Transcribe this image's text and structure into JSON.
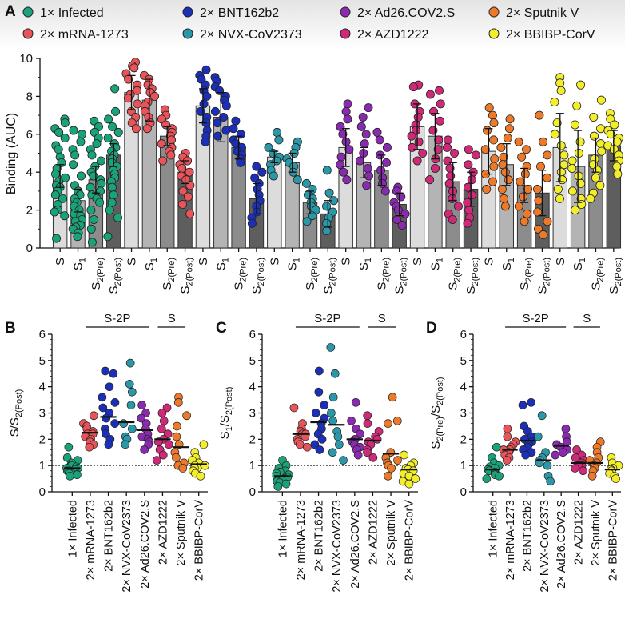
{
  "colors": {
    "Infected": "#1aa37a",
    "mRNA-1273": "#e8545a",
    "BNT162b2": "#1c2fb8",
    "NVX-CoV2373": "#2a98a8",
    "Ad26.COV2.S": "#8a2ab0",
    "AZD1222": "#cf2a78",
    "SputnikV": "#ec7a2a",
    "BBIBP-CorV": "#f2ee2a",
    "bar_S": "#dcdcdc",
    "bar_S1": "#b4b4b4",
    "bar_S2pre": "#8c8c8c",
    "bar_S2post": "#5e5e5e"
  },
  "panel_letters": {
    "A": "A",
    "B": "B",
    "C": "C",
    "D": "D"
  },
  "legend": [
    {
      "label": "1× Infected",
      "color_key": "Infected"
    },
    {
      "label": "2× BNT162b2",
      "color_key": "BNT162b2"
    },
    {
      "label": "2× Ad26.COV2.S",
      "color_key": "Ad26.COV2.S"
    },
    {
      "label": "2× Sputnik V",
      "color_key": "SputnikV"
    },
    {
      "label": "2× mRNA-1273",
      "color_key": "mRNA-1273"
    },
    {
      "label": "2× NVX-CoV2373",
      "color_key": "NVX-CoV2373"
    },
    {
      "label": "2× AZD1222",
      "color_key": "AZD1222"
    },
    {
      "label": "2× BBIBP-CorV",
      "color_key": "BBIBP-CorV"
    }
  ],
  "antigen_labels": {
    "S": "S",
    "S1_base": "S",
    "S1_sub": "1",
    "S2_base": "S",
    "S2pre_sub": "2(Pre)",
    "S2post_sub": "2(Post)"
  },
  "bracket_labels": {
    "s2p": "S-2P",
    "s": "S"
  },
  "group_labels": [
    "1× Infected",
    "2× mRNA-1273",
    "2× BNT162b2",
    "2× NVX-CoV2373",
    "2× Ad26.COV2.S",
    "2× AZD1222",
    "2× Sputnik V",
    "2× BBIBP-CorV"
  ],
  "chart_data": [
    {
      "panel": "A",
      "type": "bar",
      "ylabel": "Binding (AUC)",
      "ylim": [
        0,
        10
      ],
      "yticks": [
        0,
        2,
        4,
        6,
        8,
        10
      ],
      "categories": [
        "S",
        "S1",
        "S2(Pre)",
        "S2(Post)"
      ],
      "series": [
        {
          "name": "1× Infected",
          "color_key": "Infected",
          "values": [
            3.8,
            2.5,
            3.6,
            4.9
          ],
          "err": [
            0.6,
            0.6,
            0.7,
            0.6
          ]
        },
        {
          "name": "2× mRNA-1273",
          "color_key": "mRNA-1273",
          "values": [
            8.2,
            7.8,
            5.9,
            4.0
          ],
          "err": [
            0.9,
            1.1,
            0.5,
            0.6
          ]
        },
        {
          "name": "2× BNT162b2",
          "color_key": "BNT162b2",
          "values": [
            7.5,
            6.9,
            5.3,
            2.6
          ],
          "err": [
            0.9,
            1.3,
            0.6,
            0.8
          ]
        },
        {
          "name": "2× NVX-CoV2373",
          "color_key": "NVX-CoV2373",
          "values": [
            4.8,
            4.5,
            2.4,
            1.8
          ],
          "err": [
            0.3,
            0.5,
            0.6,
            0.7
          ]
        },
        {
          "name": "2× Ad26.COV2.S",
          "color_key": "Ad26.COV2.S",
          "values": [
            5.3,
            4.5,
            4.1,
            2.3
          ],
          "err": [
            1.0,
            0.8,
            0.8,
            0.6
          ]
        },
        {
          "name": "2× AZD1222",
          "color_key": "AZD1222",
          "values": [
            6.4,
            5.9,
            3.5,
            3.1
          ],
          "err": [
            1.2,
            1.2,
            1.0,
            0.9
          ]
        },
        {
          "name": "2× Sputnik V",
          "color_key": "SputnikV",
          "values": [
            5.1,
            4.4,
            3.3,
            2.9
          ],
          "err": [
            1.2,
            1.1,
            0.9,
            1.2
          ]
        },
        {
          "name": "2× BBIBP-CorV",
          "color_key": "BBIBP-CorV",
          "values": [
            5.3,
            4.3,
            4.9,
            5.4
          ],
          "err": [
            1.8,
            1.9,
            0.9,
            0.8
          ]
        }
      ],
      "points": [
        [
          [
            6.8,
            6.6,
            6.3,
            6.1,
            5.8,
            5.4,
            5.2,
            4.8,
            4.5,
            4.2,
            3.9,
            3.7,
            3.5,
            3.3,
            3.2,
            3.0,
            2.8,
            2.6,
            2.3,
            2.0,
            1.9,
            1.7,
            0.5
          ],
          [
            6.2,
            6.0,
            5.6,
            5.2,
            4.9,
            4.4,
            3.8,
            3.3,
            3.0,
            2.8,
            2.6,
            2.4,
            2.2,
            2.0,
            1.8,
            1.7,
            1.5,
            1.4,
            1.2,
            1.1,
            1.0,
            0.8,
            0.6
          ],
          [
            6.7,
            6.4,
            6.1,
            5.8,
            5.5,
            5.2,
            4.9,
            4.6,
            4.3,
            4.0,
            3.8,
            3.6,
            3.4,
            3.2,
            3.0,
            2.8,
            2.6,
            2.4,
            2.0,
            1.5,
            1.0,
            0.3
          ],
          [
            8.4,
            7.2,
            6.8,
            6.4,
            6.1,
            5.8,
            5.5,
            5.3,
            5.1,
            4.9,
            4.7,
            4.5,
            4.3,
            4.1,
            3.9,
            3.7,
            3.5,
            3.2,
            2.8,
            2.4,
            2.0,
            1.6,
            0.6
          ]
        ],
        [
          [
            9.8,
            9.6,
            9.5,
            9.2,
            8.9,
            8.6,
            8.3,
            8.1,
            7.9,
            7.6,
            7.2,
            6.9,
            6.6,
            6.3
          ],
          [
            9.1,
            8.9,
            8.6,
            8.4,
            8.2,
            8.0,
            7.7,
            7.5,
            7.2,
            6.9,
            6.6,
            6.3
          ],
          [
            7.3,
            7.0,
            6.8,
            6.5,
            6.3,
            6.1,
            5.9,
            5.7,
            5.5,
            5.3,
            5.1,
            4.9,
            4.6
          ],
          [
            5.0,
            4.8,
            4.6,
            4.4,
            4.2,
            4.0,
            3.8,
            3.6,
            3.3,
            3.0,
            2.7,
            2.3,
            1.8
          ]
        ],
        [
          [
            9.4,
            9.1,
            8.9,
            8.6,
            8.3,
            8.0,
            7.6,
            7.2,
            6.9,
            6.6,
            6.2,
            5.9,
            5.6
          ],
          [
            9.0,
            8.8,
            8.5,
            8.3,
            8.0,
            7.8,
            7.5,
            7.2,
            6.9,
            6.6,
            6.2,
            5.9
          ],
          [
            6.7,
            6.3,
            6.0,
            5.7,
            5.5,
            5.3,
            5.1,
            4.9,
            4.7,
            4.5
          ],
          [
            4.3,
            4.0,
            3.7,
            3.4,
            3.1,
            2.8,
            2.5,
            2.2,
            1.9,
            1.6,
            1.3
          ]
        ],
        [
          [
            6.1,
            5.7,
            5.3,
            5.0,
            4.8,
            4.6,
            4.4,
            4.1,
            3.8
          ],
          [
            5.6,
            5.3,
            5.0,
            4.7,
            4.5,
            4.3,
            4.0,
            3.6
          ],
          [
            3.4,
            3.1,
            2.8,
            2.6,
            2.4,
            2.2,
            2.0,
            1.7,
            1.4
          ],
          [
            4.1,
            2.9,
            2.5,
            2.2,
            1.9,
            1.6,
            1.3,
            0.9
          ]
        ],
        [
          [
            7.6,
            7.2,
            6.8,
            6.4,
            6.0,
            5.6,
            5.2,
            4.8,
            4.4,
            4.0,
            3.6
          ],
          [
            7.4,
            6.9,
            6.4,
            6.0,
            5.5,
            5.0,
            4.6,
            4.2,
            3.8,
            3.3
          ],
          [
            6.1,
            5.7,
            5.3,
            4.9,
            4.5,
            4.1,
            3.7,
            3.4,
            3.0
          ],
          [
            3.2,
            3.0,
            2.7,
            2.4,
            2.2,
            2.0,
            1.8,
            1.5,
            1.2
          ]
        ],
        [
          [
            8.6,
            8.5,
            7.6,
            7.2,
            6.9,
            6.5,
            6.2,
            5.9,
            5.6,
            5.3,
            5.0,
            4.6
          ],
          [
            8.3,
            8.1,
            7.6,
            7.2,
            6.7,
            6.2,
            5.7,
            5.2,
            4.7,
            4.2,
            3.6
          ],
          [
            5.7,
            5.3,
            5.0,
            4.6,
            4.2,
            3.8,
            3.4,
            3.0,
            2.6,
            2.2,
            1.8,
            1.5
          ],
          [
            5.2,
            4.9,
            4.4,
            4.0,
            3.6,
            3.2,
            2.8,
            2.4,
            2.0,
            1.6,
            1.3
          ]
        ],
        [
          [
            7.4,
            7.0,
            6.6,
            6.2,
            5.7,
            5.2,
            4.7,
            4.3,
            3.9,
            3.5,
            3.1
          ],
          [
            6.8,
            6.3,
            5.8,
            5.3,
            4.8,
            4.4,
            4.0,
            3.6,
            3.1,
            2.6,
            2.2
          ],
          [
            5.6,
            5.2,
            4.8,
            4.3,
            3.9,
            3.5,
            3.1,
            2.7,
            2.2,
            1.8,
            1.4
          ],
          [
            7.0,
            5.6,
            4.9,
            4.3,
            3.7,
            3.1,
            2.5,
            1.9,
            1.4,
            1.0,
            0.7
          ]
        ],
        [
          [
            9.0,
            8.7,
            8.3,
            7.7,
            6.6,
            6.0,
            5.4,
            4.9,
            4.4,
            4.0,
            3.6,
            3.1,
            2.6
          ],
          [
            8.6,
            7.5,
            6.5,
            5.6,
            5.0,
            4.6,
            4.2,
            3.8,
            3.4,
            3.0,
            2.6,
            2.3,
            2.0
          ],
          [
            7.8,
            6.9,
            6.3,
            5.9,
            5.5,
            5.1,
            4.7,
            4.4,
            4.1,
            3.7,
            3.3,
            2.9,
            2.6
          ],
          [
            7.1,
            6.8,
            6.5,
            6.2,
            6.0,
            5.8,
            5.6,
            5.4,
            5.2,
            4.9,
            4.6,
            4.3,
            3.9
          ]
        ]
      ]
    },
    {
      "panel": "B",
      "type": "scatter",
      "ylabel_base": "S/S",
      "ylabel_sub": "2(Post)",
      "ylim": [
        0,
        6
      ],
      "yticks": [
        0,
        1,
        2,
        3,
        4,
        5,
        6
      ],
      "reference_line": 1,
      "medians": [
        0.9,
        2.25,
        2.85,
        2.65,
        2.35,
        2.0,
        1.7,
        1.05
      ],
      "points": [
        [
          1.7,
          1.3,
          1.2,
          1.1,
          1.0,
          1.0,
          0.95,
          0.9,
          0.9,
          0.85,
          0.8,
          0.8,
          0.75,
          0.7,
          0.7,
          0.65,
          0.6
        ],
        [
          2.9,
          2.6,
          2.5,
          2.4,
          2.3,
          2.2,
          2.2,
          2.1,
          2.0,
          1.9,
          1.8,
          1.7
        ],
        [
          4.6,
          4.5,
          4.0,
          3.6,
          3.4,
          3.2,
          3.0,
          2.8,
          2.6,
          2.4,
          2.2,
          2.0,
          1.8
        ],
        [
          4.9,
          4.1,
          3.8,
          3.3,
          2.6,
          2.4,
          2.1,
          2.0,
          1.8
        ],
        [
          3.3,
          3.0,
          2.8,
          2.6,
          2.4,
          2.2,
          2.1,
          2.0,
          1.9,
          1.8,
          1.6
        ],
        [
          3.2,
          3.0,
          2.7,
          2.4,
          2.2,
          2.0,
          1.9,
          1.8,
          1.6,
          1.4,
          1.2
        ],
        [
          3.6,
          3.4,
          2.9,
          2.5,
          2.1,
          1.8,
          1.5,
          1.3,
          1.1,
          1.0,
          0.9
        ],
        [
          1.8,
          1.5,
          1.3,
          1.2,
          1.1,
          1.0,
          1.0,
          0.9,
          0.9,
          0.8,
          0.7,
          0.6
        ]
      ]
    },
    {
      "panel": "C",
      "type": "scatter",
      "ylabel_base": "S",
      "ylabel_sub1": "1",
      "ylabel_mid": "/S",
      "ylabel_sub2": "2(Post)",
      "ylim": [
        0,
        6
      ],
      "yticks": [
        0,
        1,
        2,
        3,
        4,
        5,
        6
      ],
      "reference_line": 1,
      "medians": [
        0.6,
        2.2,
        2.65,
        2.55,
        2.0,
        1.95,
        1.45,
        0.85
      ],
      "points": [
        [
          1.2,
          1.0,
          0.9,
          0.8,
          0.75,
          0.7,
          0.65,
          0.6,
          0.55,
          0.5,
          0.45,
          0.4,
          0.35,
          0.3,
          0.2
        ],
        [
          3.2,
          2.6,
          2.4,
          2.3,
          2.2,
          2.2,
          2.1,
          2.0,
          1.9,
          1.8,
          1.7
        ],
        [
          4.6,
          3.8,
          3.3,
          3.0,
          2.8,
          2.6,
          2.4,
          2.2,
          2.0,
          1.8,
          1.6
        ],
        [
          5.5,
          4.5,
          3.6,
          3.0,
          2.7,
          2.3,
          2.1,
          1.8,
          1.5,
          1.2
        ],
        [
          3.4,
          2.7,
          2.4,
          2.2,
          2.0,
          1.9,
          1.8,
          1.7,
          1.6,
          1.4
        ],
        [
          2.9,
          2.6,
          2.3,
          2.1,
          2.0,
          1.9,
          1.8,
          1.6,
          1.5,
          1.3
        ],
        [
          3.6,
          2.7,
          2.6,
          1.5,
          1.3,
          1.2,
          1.1,
          1.0,
          0.9,
          0.6
        ],
        [
          1.4,
          1.1,
          1.0,
          0.9,
          0.85,
          0.8,
          0.7,
          0.6,
          0.5,
          0.4,
          0.3
        ]
      ]
    },
    {
      "panel": "D",
      "type": "scatter",
      "ylabel_base": "S",
      "ylabel_sub1": "2(Pre)",
      "ylabel_mid": "/S",
      "ylabel_sub2": "2(Post)",
      "ylim": [
        0,
        6
      ],
      "yticks": [
        0,
        1,
        2,
        3,
        4,
        5,
        6
      ],
      "reference_line": 1,
      "medians": [
        0.85,
        1.6,
        1.95,
        1.2,
        1.75,
        1.1,
        1.1,
        0.85
      ],
      "points": [
        [
          1.7,
          1.3,
          1.1,
          1.0,
          0.95,
          0.9,
          0.85,
          0.8,
          0.75,
          0.7,
          0.65,
          0.6,
          0.5
        ],
        [
          2.4,
          2.1,
          1.9,
          1.8,
          1.7,
          1.6,
          1.6,
          1.5,
          1.4,
          1.3,
          1.2
        ],
        [
          3.4,
          3.3,
          2.5,
          2.3,
          2.1,
          2.0,
          1.9,
          1.8,
          1.7,
          1.6,
          1.5,
          1.4
        ],
        [
          2.9,
          2.1,
          1.5,
          1.3,
          1.2,
          1.1,
          1.0,
          0.6,
          0.4
        ],
        [
          2.4,
          2.1,
          1.9,
          1.8,
          1.7,
          1.6,
          1.5,
          1.4
        ],
        [
          1.6,
          1.4,
          1.3,
          1.2,
          1.1,
          1.0,
          1.0,
          0.9,
          0.8
        ],
        [
          1.9,
          1.7,
          1.5,
          1.3,
          1.2,
          1.1,
          1.0,
          0.9,
          0.8,
          0.6
        ],
        [
          1.3,
          1.1,
          1.0,
          0.9,
          0.85,
          0.8,
          0.7,
          0.6,
          0.5
        ]
      ]
    }
  ]
}
